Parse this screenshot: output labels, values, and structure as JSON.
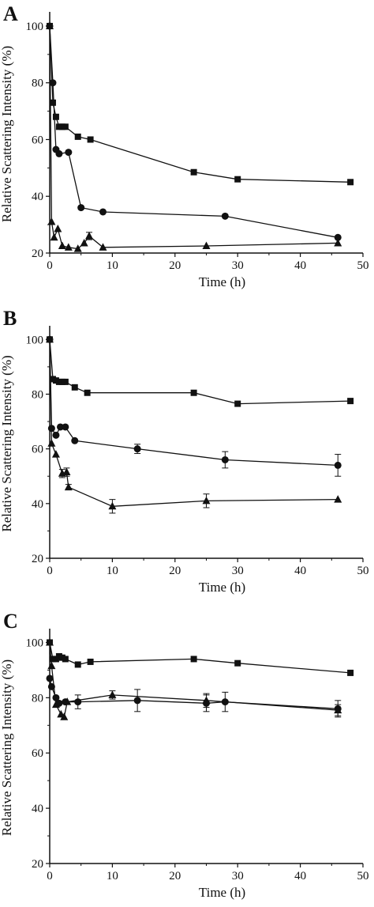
{
  "chart_data": [
    {
      "type": "line",
      "panel_label": "A",
      "xlabel": "Time (h)",
      "ylabel": "Relative Scattering Intensity (%)",
      "xlim": [
        0,
        50
      ],
      "ylim": [
        20,
        105
      ],
      "xticks": [
        0,
        10,
        20,
        30,
        40,
        50
      ],
      "yticks": [
        20,
        40,
        60,
        80,
        100
      ],
      "series": [
        {
          "marker": "square",
          "x": [
            0,
            0.5,
            1,
            1.5,
            2,
            2.5,
            4.5,
            6.5,
            23,
            30,
            48
          ],
          "y": [
            100,
            73,
            68,
            64.5,
            64.5,
            64.5,
            61,
            60,
            48.5,
            46,
            45
          ],
          "err": [
            0,
            0,
            0,
            0,
            0,
            0,
            0,
            0,
            0,
            0,
            0
          ]
        },
        {
          "marker": "circle",
          "x": [
            0,
            0.5,
            1,
            1.5,
            3,
            5,
            8.5,
            28,
            46
          ],
          "y": [
            100,
            80,
            56.5,
            55,
            55.5,
            36,
            34.5,
            33,
            25.5
          ],
          "err": [
            0,
            0,
            0,
            0,
            0,
            0,
            0,
            0,
            0
          ]
        },
        {
          "marker": "triangle",
          "x": [
            0,
            0.3,
            0.7,
            1.3,
            2,
            3,
            4.5,
            5.5,
            6.3,
            8.5,
            25,
            46
          ],
          "y": [
            100,
            31,
            25.5,
            28.5,
            22.5,
            22,
            21.5,
            23.5,
            26,
            22,
            22.5,
            23.5
          ],
          "err": [
            0,
            0,
            0,
            0,
            0,
            0,
            0,
            0,
            1.3,
            0,
            0,
            0
          ]
        }
      ]
    },
    {
      "type": "line",
      "panel_label": "B",
      "xlabel": "Time (h)",
      "ylabel": "Relative Scattering Intensity (%)",
      "xlim": [
        0,
        50
      ],
      "ylim": [
        20,
        105
      ],
      "xticks": [
        0,
        10,
        20,
        30,
        40,
        50
      ],
      "yticks": [
        20,
        40,
        60,
        80,
        100
      ],
      "series": [
        {
          "marker": "square",
          "x": [
            0,
            0.5,
            1,
            1.5,
            2,
            2.5,
            4,
            6,
            23,
            30,
            48
          ],
          "y": [
            100,
            85.5,
            85,
            84.5,
            84.5,
            84.5,
            82.5,
            80.5,
            80.5,
            76.5,
            77.5
          ],
          "err": [
            0,
            0,
            0,
            0,
            0,
            0,
            0,
            0,
            0,
            0,
            0
          ]
        },
        {
          "marker": "circle",
          "x": [
            0,
            0.3,
            1,
            1.7,
            2.5,
            4,
            14,
            28,
            46
          ],
          "y": [
            100,
            67.5,
            65,
            68,
            68,
            63,
            60,
            56,
            54
          ],
          "err": [
            0,
            0,
            0,
            0,
            0,
            0,
            1.7,
            3,
            4
          ]
        },
        {
          "marker": "triangle",
          "x": [
            0,
            0.3,
            1,
            2,
            2.7,
            3,
            10,
            25,
            46
          ],
          "y": [
            100,
            62,
            58,
            51,
            51.5,
            46,
            39,
            41,
            41.5
          ],
          "err": [
            0,
            0,
            0,
            1.5,
            1.5,
            1,
            2.5,
            2.5,
            0
          ]
        }
      ]
    },
    {
      "type": "line",
      "panel_label": "C",
      "xlabel": "Time (h)",
      "ylabel": "Relative Scattering Intensity (%)",
      "xlim": [
        0,
        50
      ],
      "ylim": [
        20,
        105
      ],
      "xticks": [
        0,
        10,
        20,
        30,
        40,
        50
      ],
      "yticks": [
        20,
        40,
        60,
        80,
        100
      ],
      "series": [
        {
          "marker": "square",
          "x": [
            0,
            0.5,
            1,
            1.5,
            2,
            2.5,
            4.5,
            6.5,
            23,
            30,
            48
          ],
          "y": [
            100,
            94,
            94,
            95,
            94.5,
            94,
            92,
            93,
            94,
            92.5,
            89
          ],
          "err": [
            0,
            0,
            0,
            0,
            0,
            0,
            0,
            0,
            0,
            0,
            0
          ]
        },
        {
          "marker": "circle",
          "x": [
            0,
            0.3,
            1,
            1.5,
            2.5,
            4.5,
            14,
            25,
            28,
            46
          ],
          "y": [
            87,
            84,
            80,
            78,
            78.5,
            78.5,
            79,
            78,
            78.5,
            76
          ],
          "err": [
            0,
            0,
            0,
            0,
            0,
            2.5,
            4,
            3,
            3.5,
            3
          ]
        },
        {
          "marker": "triangle",
          "x": [
            0,
            0.3,
            1,
            1.8,
            2.3,
            2.8,
            10,
            25,
            46
          ],
          "y": [
            100,
            91.5,
            77.5,
            74,
            73,
            78.5,
            81,
            79,
            75.5
          ],
          "err": [
            0,
            0,
            0,
            0,
            0,
            0,
            1.5,
            2.5,
            2
          ]
        }
      ]
    }
  ]
}
